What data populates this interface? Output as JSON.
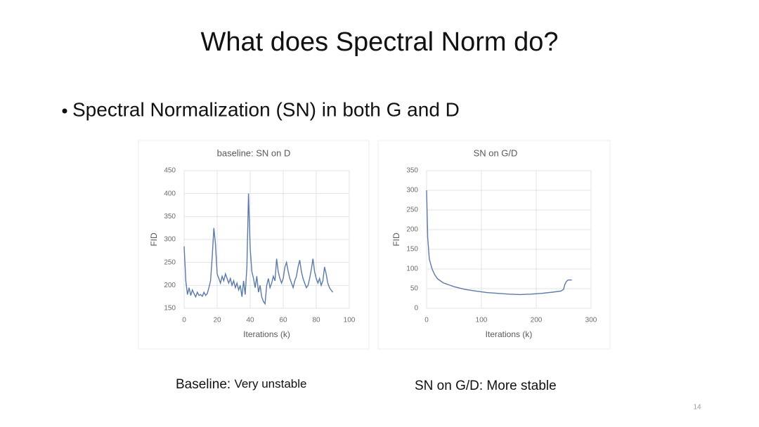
{
  "title": "What does Spectral Norm do?",
  "bullet": "Spectral Normalization (SN) in both G and D",
  "chart_data": [
    {
      "type": "line",
      "title": "baseline: SN on D",
      "xlabel": "Iterations (k)",
      "ylabel": "FID",
      "xlim": [
        0,
        100
      ],
      "xticks": [
        0,
        20,
        40,
        60,
        80,
        100
      ],
      "ylim": [
        150,
        450
      ],
      "yticks": [
        150,
        200,
        250,
        300,
        350,
        400,
        450
      ],
      "grid": true,
      "color": "#5a7aa8",
      "x": [
        0,
        1,
        2,
        3,
        4,
        5,
        6,
        7,
        8,
        9,
        10,
        11,
        12,
        13,
        14,
        15,
        16,
        17,
        18,
        19,
        20,
        21,
        22,
        23,
        24,
        25,
        26,
        27,
        28,
        29,
        30,
        31,
        32,
        33,
        34,
        35,
        36,
        37,
        38,
        39,
        40,
        41,
        42,
        43,
        44,
        45,
        46,
        47,
        48,
        49,
        50,
        51,
        52,
        53,
        54,
        55,
        56,
        57,
        58,
        59,
        60,
        61,
        62,
        63,
        64,
        65,
        66,
        67,
        68,
        69,
        70,
        71,
        72,
        73,
        74,
        75,
        76,
        77,
        78,
        79,
        80,
        81,
        82,
        83,
        84,
        85,
        86,
        87,
        88,
        89,
        90
      ],
      "values": [
        285,
        210,
        180,
        195,
        178,
        190,
        182,
        175,
        185,
        178,
        180,
        176,
        185,
        178,
        182,
        195,
        210,
        260,
        325,
        290,
        225,
        215,
        205,
        220,
        210,
        225,
        215,
        205,
        215,
        200,
        210,
        195,
        205,
        190,
        200,
        175,
        210,
        180,
        240,
        400,
        280,
        230,
        215,
        195,
        220,
        185,
        200,
        175,
        165,
        160,
        200,
        215,
        195,
        205,
        220,
        210,
        258,
        230,
        215,
        205,
        215,
        240,
        250,
        230,
        215,
        205,
        195,
        210,
        220,
        240,
        255,
        230,
        215,
        205,
        195,
        200,
        215,
        235,
        258,
        230,
        215,
        205,
        215,
        200,
        210,
        240,
        225,
        205,
        195,
        190,
        185
      ]
    },
    {
      "type": "line",
      "title": "SN on G/D",
      "xlabel": "Iterations (k)",
      "ylabel": "FID",
      "xlim": [
        0,
        300
      ],
      "xticks": [
        0,
        100,
        200,
        300
      ],
      "ylim": [
        0,
        350
      ],
      "yticks": [
        0,
        50,
        100,
        150,
        200,
        250,
        300,
        350
      ],
      "grid": true,
      "color": "#5a7aa8",
      "x": [
        0,
        2,
        5,
        10,
        15,
        20,
        30,
        40,
        50,
        70,
        90,
        110,
        130,
        150,
        170,
        190,
        210,
        230,
        245,
        250,
        252,
        255,
        258,
        265
      ],
      "values": [
        300,
        180,
        125,
        100,
        85,
        75,
        65,
        60,
        55,
        48,
        44,
        40,
        38,
        36,
        35,
        36,
        38,
        41,
        44,
        48,
        60,
        68,
        72,
        72
      ]
    }
  ],
  "caption_1": {
    "lead": "Baseline:",
    "text": "Very unstable"
  },
  "caption_2": "SN on G/D: More stable",
  "page_number": "14"
}
